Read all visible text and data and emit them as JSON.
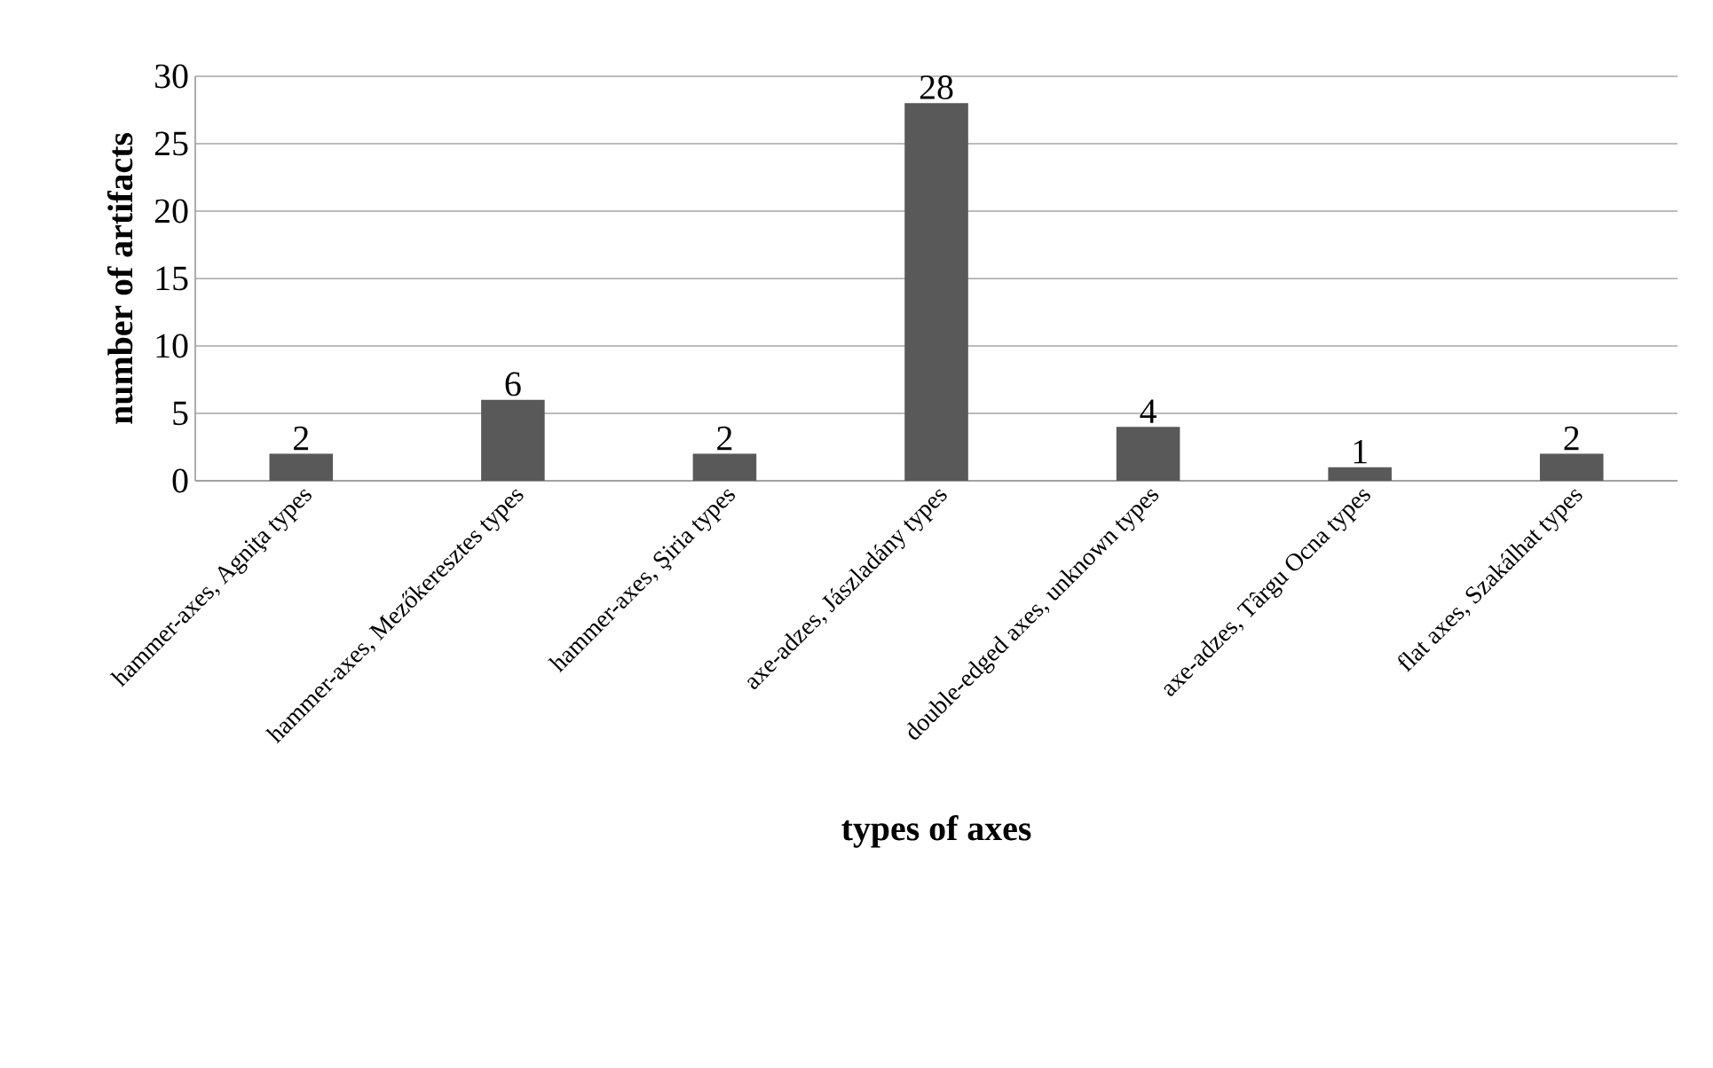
{
  "chart_data": {
    "type": "bar",
    "xlabel": "types of axes",
    "ylabel": "number of artifacts",
    "categories": [
      "hammer-axes, Agniţa types",
      "hammer-axes, Mezőkeresztes types",
      "hammer-axes, Şiria types",
      "axe-adzes, Jászladány types",
      "double-edged axes, unknown types",
      "axe-adzes, Târgu Ocna types",
      "flat axes, Szakálhat types"
    ],
    "values": [
      2,
      6,
      2,
      28,
      4,
      1,
      2
    ],
    "color": "#595959",
    "ylim": [
      0,
      30
    ],
    "yticks": [
      0,
      5,
      10,
      15,
      20,
      25,
      30
    ],
    "grid": "y",
    "data_labels": true
  }
}
